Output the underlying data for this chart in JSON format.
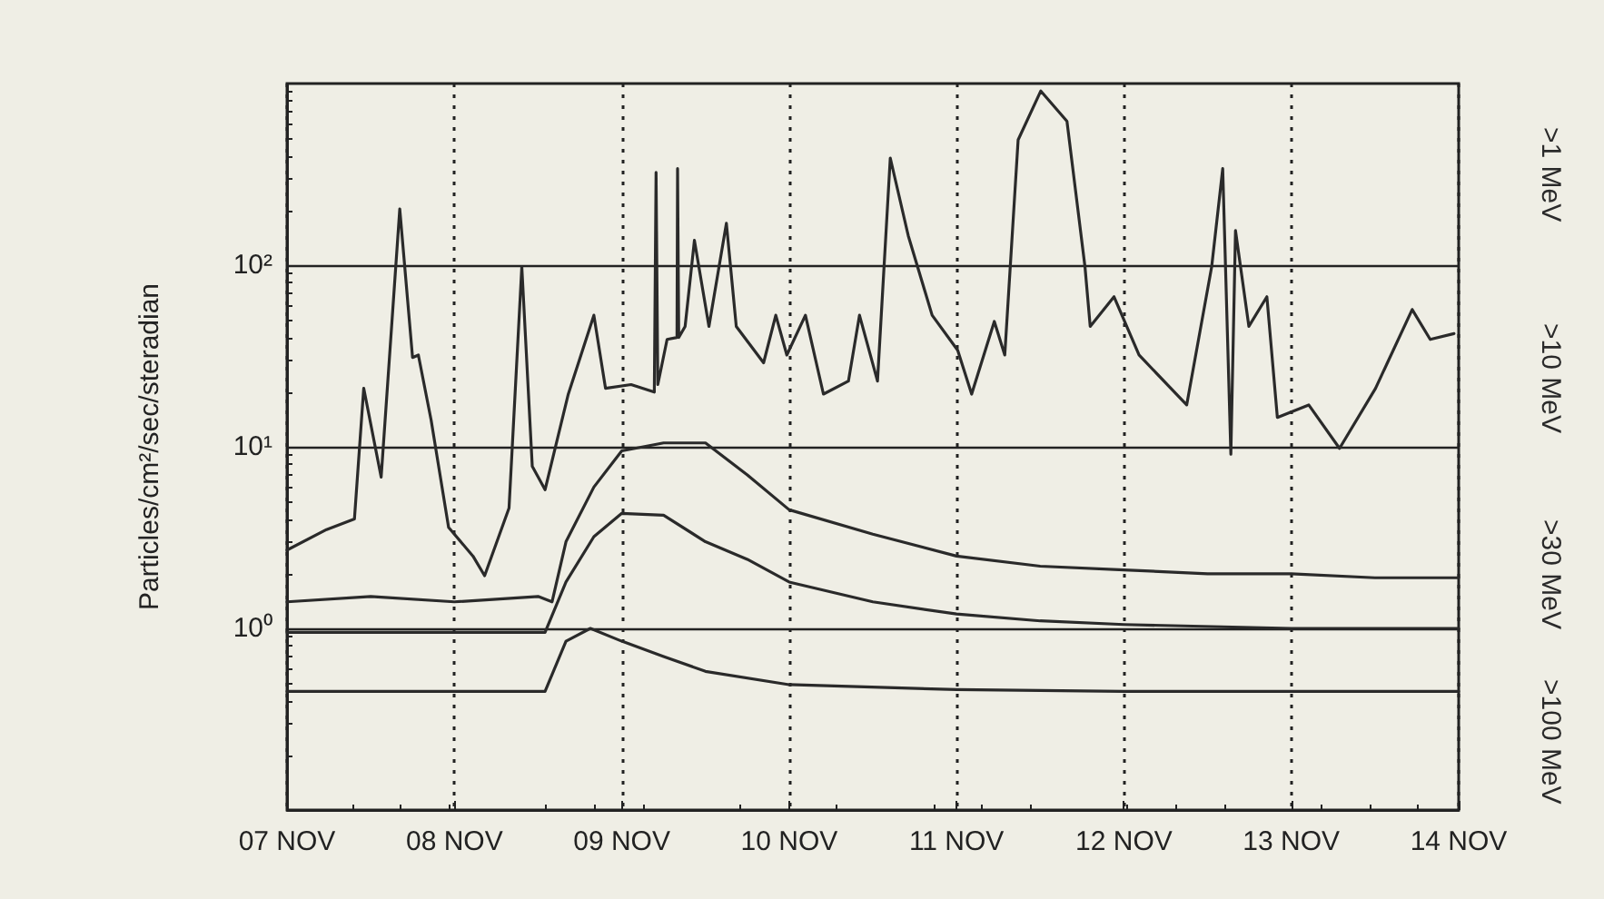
{
  "chart_data": {
    "type": "line",
    "ylabel": "Particles/cm²/sec/steradian",
    "xlim": [
      "--11-07",
      "--11-14"
    ],
    "xticks": [
      {
        "value": "--11-07",
        "label": "07 NOV"
      },
      {
        "value": "--11-08",
        "label": "08 NOV"
      },
      {
        "value": "--11-09",
        "label": "09 NOV"
      },
      {
        "value": "--11-10",
        "label": "10 NOV"
      },
      {
        "value": "--11-11",
        "label": "11 NOV"
      },
      {
        "value": "--11-12",
        "label": "12 NOV"
      },
      {
        "value": "--11-13",
        "label": "13 NOV"
      },
      {
        "value": "--11-14",
        "label": "14 NOV"
      }
    ],
    "ylim": [
      0.1,
      1000
    ],
    "log": true,
    "yticks": [
      {
        "value": 1,
        "label": "10⁰"
      },
      {
        "value": 10,
        "label": "10¹"
      },
      {
        "value": 100,
        "label": "10²"
      }
    ],
    "grid": true,
    "marker": "none",
    "line_style": "solid",
    "series": [
      {
        "name": ">1 MeV",
        "color": "#2a2a2a",
        "x": [
          "--11-07T00:00",
          "--11-07T05:40",
          "--11-07T09:40",
          "--11-07T11:00",
          "--11-07T13:30",
          "--11-07T16:10",
          "--11-07T18:00",
          "--11-07T18:50",
          "--11-07T20:40",
          "--11-07T23:10",
          "--11-08T02:40",
          "--11-08T04:20",
          "--11-08T07:50",
          "--11-08T09:40",
          "--11-08T11:10",
          "--11-08T13:00",
          "--11-08T16:20",
          "--11-08T20:00",
          "--11-08T21:40",
          "--11-09T01:20",
          "--11-09T04:40",
          "--11-09T04:55",
          "--11-09T05:10",
          "--11-09T06:30",
          "--11-09T07:55",
          "--11-09T08:00",
          "--11-09T08:10",
          "--11-09T09:05",
          "--11-09T10:25",
          "--11-09T12:30",
          "--11-09T15:00",
          "--11-09T16:25",
          "--11-09T20:20",
          "--11-09T22:05",
          "--11-09T23:40",
          "--11-10T02:20",
          "--11-10T04:55",
          "--11-10T08:30",
          "--11-10T10:05",
          "--11-10T12:40",
          "--11-10T14:30",
          "--11-10T17:05",
          "--11-10T20:30",
          "--11-11T00:10",
          "--11-11T02:10",
          "--11-11T05:25",
          "--11-11T06:55",
          "--11-11T08:50",
          "--11-11T12:05",
          "--11-11T15:50",
          "--11-11T18:25",
          "--11-11T19:10",
          "--11-11T22:35",
          "--11-12T02:10",
          "--11-12T09:00",
          "--11-12T12:35",
          "--11-12T14:10",
          "--11-12T15:20",
          "--11-12T16:00",
          "--11-12T17:55",
          "--11-12T20:30",
          "--11-12T22:00",
          "--11-13T02:30",
          "--11-13T06:55",
          "--11-13T12:05",
          "--11-13T17:20",
          "--11-13T19:55",
          "--11-13T23:20"
        ],
        "values": [
          2.7,
          3.5,
          4,
          21,
          6.8,
          204,
          31,
          32,
          14,
          3.6,
          2.5,
          1.95,
          4.6,
          98,
          7.8,
          5.8,
          19.5,
          53,
          21,
          22,
          20,
          324,
          22,
          39,
          40,
          340,
          40,
          46,
          137,
          46,
          170,
          46,
          29,
          53,
          32,
          53,
          19.5,
          23,
          53,
          23,
          389,
          145,
          53,
          34,
          19.5,
          49,
          32,
          490,
          910,
          620,
          98,
          46,
          67,
          32,
          17,
          98,
          340,
          9.1,
          155,
          46,
          67,
          14.5,
          17,
          9.8,
          21,
          57,
          39,
          42
        ]
      },
      {
        "name": ">10 MeV",
        "color": "#2a2a2a",
        "x": [
          "--11-07T00:00",
          "--11-07T12:00",
          "--11-08T00:00",
          "--11-08T12:00",
          "--11-08T14:00",
          "--11-08T16:00",
          "--11-08T20:00",
          "--11-09T00:00",
          "--11-09T06:00",
          "--11-09T12:00",
          "--11-09T18:00",
          "--11-10T00:00",
          "--11-10T12:00",
          "--11-11T00:00",
          "--11-11T12:00",
          "--11-12T00:00",
          "--11-12T12:00",
          "--11-13T00:00",
          "--11-13T12:00",
          "--11-14T00:00"
        ],
        "values": [
          1.4,
          1.5,
          1.4,
          1.5,
          1.4,
          3,
          6,
          9.5,
          10.5,
          10.5,
          7,
          4.5,
          3.3,
          2.5,
          2.2,
          2.1,
          2,
          2,
          1.9,
          1.9
        ]
      },
      {
        "name": ">30 MeV",
        "color": "#2a2a2a",
        "x": [
          "--11-07T00:00",
          "--11-08T00:00",
          "--11-08T13:00",
          "--11-08T16:00",
          "--11-08T20:00",
          "--11-09T00:00",
          "--11-09T06:00",
          "--11-09T12:00",
          "--11-09T18:00",
          "--11-10T00:00",
          "--11-10T12:00",
          "--11-11T00:00",
          "--11-11T12:00",
          "--11-12T00:00",
          "--11-13T00:00",
          "--11-14T00:00"
        ],
        "values": [
          0.95,
          0.95,
          0.95,
          1.8,
          3.2,
          4.3,
          4.2,
          3,
          2.4,
          1.8,
          1.4,
          1.2,
          1.1,
          1.05,
          1,
          1
        ]
      },
      {
        "name": ">100 MeV",
        "color": "#2a2a2a",
        "x": [
          "--11-07T00:00",
          "--11-08T00:00",
          "--11-08T13:00",
          "--11-08T16:00",
          "--11-08T19:30",
          "--11-09T00:00",
          "--11-09T06:00",
          "--11-09T12:00",
          "--11-10T00:00",
          "--11-11T00:00",
          "--11-12T00:00",
          "--11-13T00:00",
          "--11-14T00:00"
        ],
        "values": [
          0.45,
          0.45,
          0.45,
          0.85,
          1,
          0.85,
          0.7,
          0.58,
          0.49,
          0.46,
          0.45,
          0.45,
          0.45
        ]
      }
    ]
  }
}
